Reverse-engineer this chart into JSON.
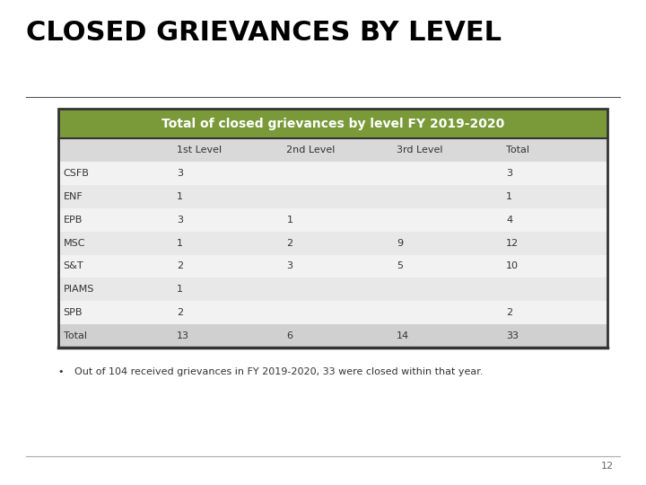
{
  "title": "CLOSED GRIEVANCES BY LEVEL",
  "table_header": "Total of closed grievances by level FY 2019-2020",
  "col_headers": [
    "",
    "1st Level",
    "2nd Level",
    "3rd Level",
    "Total"
  ],
  "rows": [
    [
      "CSFB",
      "3",
      "",
      "",
      "3"
    ],
    [
      "ENF",
      "1",
      "",
      "",
      "1"
    ],
    [
      "EPB",
      "3",
      "1",
      "",
      "4"
    ],
    [
      "MSC",
      "1",
      "2",
      "9",
      "12"
    ],
    [
      "S&T",
      "2",
      "3",
      "5",
      "10"
    ],
    [
      "PIAMS",
      "1",
      "",
      "",
      ""
    ],
    [
      "SPB",
      "2",
      "",
      "",
      "2"
    ],
    [
      "Total",
      "13",
      "6",
      "14",
      "33"
    ]
  ],
  "footnote": "Out of 104 received grievances in FY 2019-2020, 33 were closed within that year.",
  "page_number": "12",
  "header_bg_color": "#7A9A3A",
  "header_text_color": "#FFFFFF",
  "col_header_bg_color": "#D9D9D9",
  "odd_row_bg": "#F2F2F2",
  "even_row_bg": "#E8E8E8",
  "total_row_bg": "#D0D0D0",
  "border_color": "#333333",
  "title_fontsize": 22,
  "header_fontsize": 10,
  "col_header_fontsize": 8,
  "row_fontsize": 8,
  "background_color": "#FFFFFF"
}
